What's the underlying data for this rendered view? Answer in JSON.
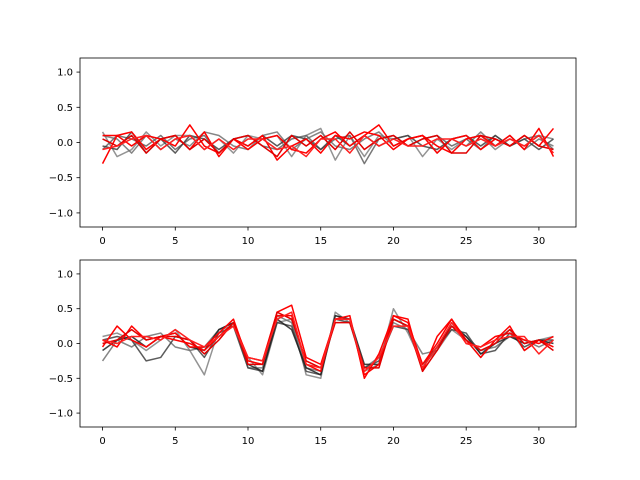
{
  "chart_data": [
    {
      "type": "line",
      "title": "",
      "xlabel": "",
      "ylabel": "",
      "xlim": [
        -1.55,
        32.55
      ],
      "ylim": [
        -1.2,
        1.2
      ],
      "xticks": [
        0,
        5,
        10,
        15,
        20,
        25,
        30
      ],
      "xtick_labels": [
        "0",
        "5",
        "10",
        "15",
        "20",
        "25",
        "30"
      ],
      "yticks": [
        -1.0,
        -0.5,
        0.0,
        0.5,
        1.0
      ],
      "ytick_labels": [
        "−1.0",
        "−0.5",
        "0.0",
        "0.5",
        "1.0"
      ],
      "x": [
        0,
        1,
        2,
        3,
        4,
        5,
        6,
        7,
        8,
        9,
        10,
        11,
        12,
        13,
        14,
        15,
        16,
        17,
        18,
        19,
        20,
        21,
        22,
        23,
        24,
        25,
        26,
        27,
        28,
        29,
        30,
        31
      ],
      "series": [
        {
          "color": "#808080",
          "values": [
            0.15,
            -0.2,
            -0.1,
            0.15,
            -0.05,
            0.1,
            0.1,
            -0.1,
            0.05,
            -0.15,
            0.1,
            0.05,
            0.1,
            -0.2,
            0.1,
            0.2,
            -0.25,
            0.1,
            -0.2,
            0.1,
            0.05,
            0.1,
            -0.2,
            0.05,
            -0.1,
            0.05,
            0.1,
            -0.1,
            0.05,
            -0.05,
            0.1,
            0.05
          ]
        },
        {
          "color": "#707070",
          "values": [
            0.1,
            0.05,
            -0.15,
            0.1,
            -0.1,
            0.05,
            -0.05,
            0.15,
            0.1,
            -0.05,
            -0.1,
            0.1,
            0.15,
            -0.1,
            0.05,
            0.15,
            -0.05,
            -0.1,
            0.05,
            0.15,
            -0.05,
            0.05,
            0.1,
            -0.15,
            0.05,
            -0.05,
            0.15,
            -0.05,
            0.1,
            -0.1,
            0.05,
            -0.05
          ]
        },
        {
          "color": "#606060",
          "values": [
            -0.1,
            0.1,
            0.05,
            -0.05,
            0.1,
            -0.1,
            0.05,
            0.1,
            -0.15,
            0.05,
            0.1,
            -0.05,
            -0.1,
            0.05,
            0.1,
            -0.1,
            0.05,
            0.1,
            -0.3,
            0.05,
            0.1,
            -0.05,
            0.05,
            0.1,
            -0.05,
            0.05,
            -0.1,
            0.1,
            -0.05,
            0.05,
            0.1,
            -0.1
          ]
        },
        {
          "color": "#404040",
          "values": [
            -0.05,
            -0.1,
            0.15,
            -0.15,
            0.05,
            -0.15,
            0.1,
            0.05,
            -0.1,
            0.05,
            -0.05,
            0.1,
            -0.05,
            0.1,
            0.05,
            -0.1,
            0.1,
            -0.05,
            0.1,
            -0.05,
            0.05,
            0.1,
            -0.05,
            -0.1,
            0.05,
            0.1,
            -0.05,
            0.1,
            -0.05,
            0.05,
            -0.1,
            0.05
          ]
        },
        {
          "color": "#ff0000",
          "values": [
            -0.3,
            0.1,
            -0.05,
            0.1,
            0.05,
            0.1,
            -0.1,
            0.15,
            -0.2,
            0.05,
            -0.05,
            0.1,
            -0.25,
            -0.05,
            0.05,
            -0.15,
            0.1,
            0.05,
            0.15,
            0.1,
            -0.1,
            0.05,
            0.1,
            -0.15,
            0.05,
            0.1,
            -0.1,
            0.05,
            -0.05,
            0.1,
            -0.05,
            0.2
          ]
        },
        {
          "color": "#ff0000",
          "values": [
            0.1,
            0.1,
            0.15,
            -0.1,
            0.05,
            -0.05,
            0.25,
            -0.05,
            -0.15,
            0.05,
            -0.1,
            0.05,
            0.1,
            -0.1,
            -0.15,
            0.05,
            0.15,
            -0.05,
            0.1,
            0.25,
            -0.05,
            0.05,
            0.1,
            -0.05,
            -0.15,
            0.05,
            0.1,
            -0.05,
            0.1,
            -0.1,
            0.2,
            -0.2
          ]
        },
        {
          "color": "#e00000",
          "values": [
            0.05,
            -0.05,
            0.1,
            -0.15,
            0.05,
            0.1,
            -0.1,
            0.05,
            -0.15,
            0.05,
            0.1,
            -0.05,
            -0.2,
            0.1,
            -0.05,
            0.1,
            -0.1,
            0.15,
            -0.1,
            0.05,
            0.1,
            -0.05,
            0.05,
            0.1,
            -0.15,
            -0.15,
            0.1,
            0.05,
            -0.05,
            0.1,
            -0.05,
            -0.1
          ]
        },
        {
          "color": "#ff2020",
          "values": [
            -0.1,
            -0.05,
            0.05,
            0.1,
            -0.1,
            0.05,
            0.1,
            -0.1,
            0.05,
            -0.1,
            0.05,
            0.05,
            -0.1,
            -0.05,
            -0.2,
            0.05,
            0.05,
            -0.15,
            0.1,
            -0.05,
            0.05,
            -0.05,
            -0.05,
            0.05,
            0.05,
            -0.05,
            0.05,
            -0.05,
            0.05,
            -0.05,
            0.1,
            -0.15
          ]
        }
      ]
    },
    {
      "type": "line",
      "title": "",
      "xlabel": "",
      "ylabel": "",
      "xlim": [
        -1.55,
        32.55
      ],
      "ylim": [
        -1.2,
        1.2
      ],
      "xticks": [
        0,
        5,
        10,
        15,
        20,
        25,
        30
      ],
      "xtick_labels": [
        "0",
        "5",
        "10",
        "15",
        "20",
        "25",
        "30"
      ],
      "yticks": [
        -1.0,
        -0.5,
        0.0,
        0.5,
        1.0
      ],
      "ytick_labels": [
        "−1.0",
        "−0.5",
        "0.0",
        "0.5",
        "1.0"
      ],
      "x": [
        0,
        1,
        2,
        3,
        4,
        5,
        6,
        7,
        8,
        9,
        10,
        11,
        12,
        13,
        14,
        15,
        16,
        17,
        18,
        19,
        20,
        21,
        22,
        23,
        24,
        25,
        26,
        27,
        28,
        29,
        30,
        31
      ],
      "series": [
        {
          "color": "#808080",
          "values": [
            0.1,
            0.15,
            0.05,
            -0.1,
            0.05,
            0.2,
            -0.1,
            -0.45,
            0.2,
            0.25,
            -0.2,
            -0.45,
            0.3,
            0.35,
            -0.45,
            -0.5,
            0.45,
            0.3,
            -0.4,
            -0.3,
            0.5,
            0.15,
            -0.3,
            -0.1,
            0.2,
            0.05,
            -0.2,
            0.05,
            0.2,
            -0.1,
            0.05,
            0.1
          ]
        },
        {
          "color": "#707070",
          "values": [
            -0.25,
            0.05,
            -0.05,
            0.1,
            0.15,
            -0.05,
            -0.1,
            -0.05,
            0.2,
            0.3,
            -0.35,
            -0.35,
            0.4,
            0.3,
            -0.35,
            -0.4,
            0.4,
            0.35,
            -0.35,
            -0.2,
            0.3,
            0.2,
            -0.15,
            -0.1,
            0.3,
            0.1,
            -0.1,
            -0.05,
            0.1,
            0.05,
            -0.05,
            0.05
          ]
        },
        {
          "color": "#404040",
          "values": [
            0.05,
            0.1,
            0.05,
            -0.25,
            -0.2,
            0.1,
            0.05,
            -0.2,
            0.15,
            0.25,
            -0.35,
            -0.4,
            0.3,
            0.25,
            -0.4,
            -0.45,
            0.35,
            0.3,
            -0.35,
            -0.25,
            0.25,
            0.2,
            -0.3,
            -0.05,
            0.2,
            0.15,
            -0.15,
            -0.1,
            0.15,
            -0.05,
            0.05,
            0.05
          ]
        },
        {
          "color": "#202020",
          "values": [
            -0.1,
            0.05,
            0.1,
            -0.05,
            0.1,
            0.15,
            -0.05,
            -0.1,
            0.2,
            0.3,
            -0.3,
            -0.4,
            0.35,
            0.2,
            -0.35,
            -0.45,
            0.4,
            0.35,
            -0.3,
            -0.3,
            0.35,
            0.25,
            -0.35,
            -0.05,
            0.25,
            0.1,
            -0.15,
            0.0,
            0.1,
            0.0,
            0.05,
            0.0
          ]
        },
        {
          "color": "#ff0000",
          "values": [
            0.05,
            -0.05,
            0.25,
            0.05,
            0.1,
            0.05,
            0.0,
            -0.1,
            0.1,
            0.3,
            -0.2,
            -0.25,
            0.45,
            0.55,
            -0.2,
            -0.3,
            0.35,
            0.4,
            -0.5,
            -0.15,
            0.4,
            0.35,
            -0.4,
            0.1,
            0.35,
            0.05,
            -0.2,
            0.05,
            0.25,
            -0.1,
            0.05,
            -0.05
          ]
        },
        {
          "color": "#ff0000",
          "values": [
            -0.05,
            0.25,
            0.05,
            -0.05,
            0.1,
            0.15,
            -0.05,
            -0.05,
            0.15,
            0.35,
            -0.25,
            -0.3,
            0.4,
            0.4,
            -0.3,
            -0.4,
            0.35,
            0.35,
            -0.45,
            -0.3,
            0.4,
            0.3,
            -0.3,
            0.0,
            0.35,
            0.0,
            -0.05,
            0.1,
            0.15,
            0.05,
            0.0,
            0.1
          ]
        },
        {
          "color": "#e00000",
          "values": [
            0.0,
            0.05,
            0.2,
            0.05,
            0.1,
            0.1,
            0.05,
            -0.15,
            0.05,
            0.3,
            -0.3,
            -0.3,
            0.45,
            0.35,
            -0.25,
            -0.35,
            0.3,
            0.3,
            -0.35,
            -0.35,
            0.35,
            0.25,
            -0.4,
            -0.1,
            0.25,
            0.05,
            -0.1,
            0.0,
            0.2,
            0.0,
            0.05,
            -0.1
          ]
        },
        {
          "color": "#ff2020",
          "values": [
            0.05,
            0.0,
            0.1,
            0.1,
            0.05,
            0.2,
            0.05,
            -0.05,
            0.1,
            0.25,
            -0.2,
            -0.25,
            0.35,
            0.45,
            -0.3,
            -0.35,
            0.35,
            0.35,
            -0.4,
            -0.2,
            0.25,
            0.25,
            -0.35,
            -0.05,
            0.3,
            0.0,
            -0.05,
            0.05,
            0.1,
            0.1,
            -0.15,
            0.05
          ]
        }
      ]
    }
  ]
}
